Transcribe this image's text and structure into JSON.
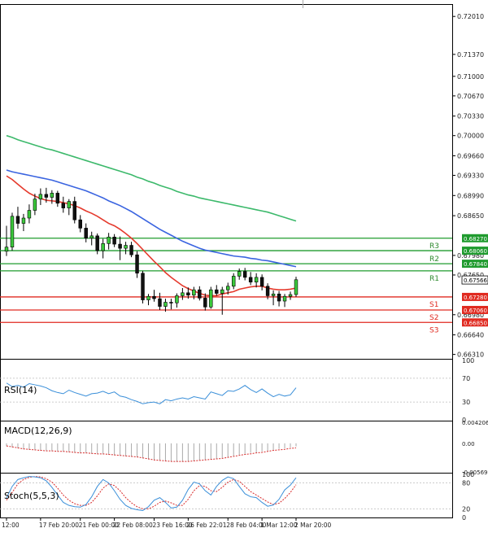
{
  "chart_data": {
    "type": "candlestick",
    "main": {
      "ylim": [
        0.6625,
        0.7215
      ],
      "price_ticks": [
        0.7201,
        0.7137,
        0.71,
        0.7067,
        0.7033,
        0.7,
        0.6966,
        0.6933,
        0.6899,
        0.6865,
        0.6798,
        0.6765,
        0.6698,
        0.6664,
        0.6631
      ],
      "price_tick_labels": [
        "0.72010",
        "0.71370",
        "0.71000",
        "0.70670",
        "0.70330",
        "0.70000",
        "0.69660",
        "0.69330",
        "0.68990",
        "0.68650",
        "0.67980",
        "0.67650",
        "0.66980",
        "0.66640",
        "0.66310"
      ],
      "candles": [
        {
          "o": 0.6805,
          "h": 0.6848,
          "l": 0.6797,
          "c": 0.6812
        },
        {
          "o": 0.6812,
          "h": 0.687,
          "l": 0.6806,
          "c": 0.6864
        },
        {
          "o": 0.6864,
          "h": 0.688,
          "l": 0.6843,
          "c": 0.6852
        },
        {
          "o": 0.6852,
          "h": 0.6868,
          "l": 0.6839,
          "c": 0.6861
        },
        {
          "o": 0.6861,
          "h": 0.6884,
          "l": 0.6852,
          "c": 0.6874
        },
        {
          "o": 0.6874,
          "h": 0.6902,
          "l": 0.6866,
          "c": 0.6893
        },
        {
          "o": 0.6893,
          "h": 0.6911,
          "l": 0.6883,
          "c": 0.6901
        },
        {
          "o": 0.6901,
          "h": 0.6912,
          "l": 0.6887,
          "c": 0.6896
        },
        {
          "o": 0.6896,
          "h": 0.6908,
          "l": 0.6885,
          "c": 0.6903
        },
        {
          "o": 0.6903,
          "h": 0.6907,
          "l": 0.688,
          "c": 0.6886
        },
        {
          "o": 0.6886,
          "h": 0.6897,
          "l": 0.687,
          "c": 0.6878
        },
        {
          "o": 0.6878,
          "h": 0.6893,
          "l": 0.6866,
          "c": 0.6889
        },
        {
          "o": 0.6889,
          "h": 0.6897,
          "l": 0.6852,
          "c": 0.6858
        },
        {
          "o": 0.6858,
          "h": 0.6866,
          "l": 0.6837,
          "c": 0.6844
        },
        {
          "o": 0.6844,
          "h": 0.6852,
          "l": 0.682,
          "c": 0.6827
        },
        {
          "o": 0.6827,
          "h": 0.6838,
          "l": 0.6815,
          "c": 0.6831
        },
        {
          "o": 0.6831,
          "h": 0.6835,
          "l": 0.68,
          "c": 0.6806
        },
        {
          "o": 0.6806,
          "h": 0.6826,
          "l": 0.6793,
          "c": 0.6818
        },
        {
          "o": 0.6818,
          "h": 0.6836,
          "l": 0.6808,
          "c": 0.6829
        },
        {
          "o": 0.6829,
          "h": 0.6834,
          "l": 0.6812,
          "c": 0.6817
        },
        {
          "o": 0.6817,
          "h": 0.683,
          "l": 0.679,
          "c": 0.681
        },
        {
          "o": 0.681,
          "h": 0.6821,
          "l": 0.68,
          "c": 0.6815
        },
        {
          "o": 0.6815,
          "h": 0.6821,
          "l": 0.6795,
          "c": 0.6799
        },
        {
          "o": 0.6799,
          "h": 0.6805,
          "l": 0.676,
          "c": 0.6768
        },
        {
          "o": 0.6768,
          "h": 0.6772,
          "l": 0.6717,
          "c": 0.6723
        },
        {
          "o": 0.6723,
          "h": 0.6733,
          "l": 0.6714,
          "c": 0.6729
        },
        {
          "o": 0.6729,
          "h": 0.674,
          "l": 0.672,
          "c": 0.6725
        },
        {
          "o": 0.6725,
          "h": 0.6735,
          "l": 0.6706,
          "c": 0.6712
        },
        {
          "o": 0.6712,
          "h": 0.6725,
          "l": 0.6703,
          "c": 0.6719
        },
        {
          "o": 0.6719,
          "h": 0.6725,
          "l": 0.6707,
          "c": 0.6718
        },
        {
          "o": 0.6718,
          "h": 0.6734,
          "l": 0.671,
          "c": 0.673
        },
        {
          "o": 0.673,
          "h": 0.6743,
          "l": 0.6723,
          "c": 0.6735
        },
        {
          "o": 0.6735,
          "h": 0.6744,
          "l": 0.6725,
          "c": 0.6731
        },
        {
          "o": 0.6731,
          "h": 0.6745,
          "l": 0.6724,
          "c": 0.674
        },
        {
          "o": 0.674,
          "h": 0.6746,
          "l": 0.6722,
          "c": 0.6726
        },
        {
          "o": 0.6726,
          "h": 0.6734,
          "l": 0.6705,
          "c": 0.6711
        },
        {
          "o": 0.6711,
          "h": 0.6745,
          "l": 0.6708,
          "c": 0.674
        },
        {
          "o": 0.674,
          "h": 0.6748,
          "l": 0.673,
          "c": 0.6734
        },
        {
          "o": 0.6734,
          "h": 0.6745,
          "l": 0.6698,
          "c": 0.674
        },
        {
          "o": 0.674,
          "h": 0.6752,
          "l": 0.6732,
          "c": 0.6746
        },
        {
          "o": 0.6746,
          "h": 0.6768,
          "l": 0.6741,
          "c": 0.6763
        },
        {
          "o": 0.6763,
          "h": 0.6776,
          "l": 0.6757,
          "c": 0.6771
        },
        {
          "o": 0.6771,
          "h": 0.6777,
          "l": 0.6756,
          "c": 0.6761
        },
        {
          "o": 0.6761,
          "h": 0.677,
          "l": 0.6748,
          "c": 0.6753
        },
        {
          "o": 0.6753,
          "h": 0.6768,
          "l": 0.6744,
          "c": 0.6761
        },
        {
          "o": 0.6761,
          "h": 0.6766,
          "l": 0.6739,
          "c": 0.6746
        },
        {
          "o": 0.6746,
          "h": 0.6751,
          "l": 0.6724,
          "c": 0.673
        },
        {
          "o": 0.673,
          "h": 0.6739,
          "l": 0.6714,
          "c": 0.6733
        },
        {
          "o": 0.6733,
          "h": 0.6738,
          "l": 0.6712,
          "c": 0.6721
        },
        {
          "o": 0.6721,
          "h": 0.6733,
          "l": 0.6711,
          "c": 0.6729
        },
        {
          "o": 0.6729,
          "h": 0.6737,
          "l": 0.6723,
          "c": 0.6732
        },
        {
          "o": 0.6732,
          "h": 0.6762,
          "l": 0.6728,
          "c": 0.6757
        }
      ],
      "ma_series": [
        {
          "name": "ma-slow",
          "color": "#3cb96b",
          "values": [
            0.7,
            0.6997,
            0.6993,
            0.699,
            0.6987,
            0.6984,
            0.6981,
            0.6978,
            0.6976,
            0.6973,
            0.697,
            0.6967,
            0.6964,
            0.6961,
            0.6958,
            0.6955,
            0.6952,
            0.6949,
            0.6946,
            0.6943,
            0.694,
            0.6937,
            0.6934,
            0.693,
            0.6927,
            0.6923,
            0.692,
            0.6916,
            0.6913,
            0.691,
            0.6906,
            0.6903,
            0.69,
            0.6898,
            0.6895,
            0.6893,
            0.6891,
            0.6889,
            0.6887,
            0.6885,
            0.6883,
            0.6881,
            0.6879,
            0.6877,
            0.6875,
            0.6873,
            0.6871,
            0.6868,
            0.6865,
            0.6862,
            0.6859,
            0.6856
          ]
        },
        {
          "name": "ma-mid",
          "color": "#3a64e0",
          "values": [
            0.6942,
            0.6939,
            0.6937,
            0.6935,
            0.6933,
            0.6931,
            0.6929,
            0.6927,
            0.6925,
            0.6922,
            0.6919,
            0.6916,
            0.6913,
            0.691,
            0.6907,
            0.6903,
            0.6899,
            0.6895,
            0.689,
            0.6886,
            0.6882,
            0.6877,
            0.6872,
            0.6866,
            0.686,
            0.6854,
            0.6848,
            0.6842,
            0.6837,
            0.6832,
            0.6827,
            0.6822,
            0.6818,
            0.6814,
            0.681,
            0.6807,
            0.6805,
            0.6803,
            0.6801,
            0.6799,
            0.6797,
            0.6796,
            0.6795,
            0.6793,
            0.6792,
            0.679,
            0.6789,
            0.6787,
            0.6785,
            0.6783,
            0.6781,
            0.6779
          ]
        },
        {
          "name": "ma-fast",
          "color": "#e53a2d",
          "values": [
            0.6932,
            0.6926,
            0.6918,
            0.691,
            0.6903,
            0.6898,
            0.6894,
            0.6891,
            0.689,
            0.6889,
            0.6887,
            0.6885,
            0.6882,
            0.6878,
            0.6873,
            0.6869,
            0.6864,
            0.6858,
            0.6852,
            0.6848,
            0.6842,
            0.6835,
            0.6827,
            0.6818,
            0.6808,
            0.6798,
            0.6788,
            0.6779,
            0.6769,
            0.6761,
            0.6754,
            0.6747,
            0.6742,
            0.6738,
            0.6734,
            0.6731,
            0.673,
            0.673,
            0.6733,
            0.6735,
            0.6737,
            0.6741,
            0.6743,
            0.6745,
            0.6746,
            0.6746,
            0.6743,
            0.6741,
            0.674,
            0.674,
            0.6741,
            0.6743
          ]
        }
      ],
      "levels": [
        {
          "name": "R3",
          "value": 0.6806,
          "label": "0.68060",
          "color": "#1f9b2e",
          "label_color": "#2e8a2e"
        },
        {
          "name": "R2",
          "value": 0.6784,
          "label": "0.67840",
          "color": "#1f9b2e",
          "label_color": "#2e8a2e"
        },
        {
          "name": "R1",
          "value": "",
          "label": "",
          "color": "#1f9b2e",
          "label_color": "#2e8a2e"
        },
        {
          "name": "S1",
          "value": 0.6728,
          "label": "0.67280",
          "color": "#e02a20",
          "label_color": "#e02a20"
        },
        {
          "name": "S2",
          "value": 0.6706,
          "label": "0.67060",
          "color": "#e02a20",
          "label_color": "#e02a20"
        },
        {
          "name": "S3",
          "value": 0.6685,
          "label": "0.66850",
          "color": "#e02a20",
          "label_color": "#e02a20"
        }
      ],
      "extra_level": {
        "value": 0.6827,
        "label": "0.68270",
        "color": "#1f9b2e"
      },
      "current_price": {
        "value": 0.67566,
        "label": "0.67566"
      },
      "extra_tick_label": "0.66980"
    },
    "rsi": {
      "label": "RSI(14)",
      "ticks": [
        "100",
        "70",
        "30",
        "0"
      ],
      "tick_values": [
        100,
        70,
        30,
        0
      ],
      "levels": [
        70,
        30
      ],
      "color": "#3a8fd9",
      "values": [
        62,
        56,
        58,
        55,
        61,
        59,
        57,
        54,
        49,
        46,
        44,
        50,
        46,
        43,
        40,
        44,
        45,
        48,
        44,
        47,
        40,
        38,
        34,
        31,
        27,
        29,
        30,
        27,
        34,
        32,
        35,
        37,
        35,
        39,
        37,
        35,
        47,
        44,
        41,
        49,
        48,
        52,
        58,
        51,
        46,
        52,
        45,
        39,
        43,
        40,
        42,
        54
      ]
    },
    "macd": {
      "label": "MACD(12,26,9)",
      "ticks": [
        "0.004206",
        "0.00",
        "-0.005698"
      ],
      "tick_values": [
        0.004206,
        0,
        -0.005698
      ],
      "signal_color": "#d82b2b",
      "hist_color": "#aaaaaa",
      "hist": [
        -0.0006,
        -0.0008,
        -0.001,
        -0.0012,
        -0.0013,
        -0.0014,
        -0.0015,
        -0.0015,
        -0.0016,
        -0.0016,
        -0.0017,
        -0.0018,
        -0.0019,
        -0.002,
        -0.002,
        -0.0021,
        -0.0021,
        -0.0022,
        -0.0023,
        -0.0024,
        -0.0025,
        -0.0026,
        -0.0027,
        -0.0028,
        -0.003,
        -0.0032,
        -0.0034,
        -0.0035,
        -0.0036,
        -0.0036,
        -0.0037,
        -0.0037,
        -0.0036,
        -0.0035,
        -0.0034,
        -0.0033,
        -0.0032,
        -0.0031,
        -0.0029,
        -0.0027,
        -0.0025,
        -0.0023,
        -0.0021,
        -0.0019,
        -0.0018,
        -0.0016,
        -0.0015,
        -0.0013,
        -0.0011,
        -0.001,
        -0.0008,
        -0.0006
      ],
      "signal": [
        -0.0005,
        -0.0007,
        -0.0009,
        -0.0011,
        -0.0012,
        -0.0013,
        -0.0014,
        -0.0015,
        -0.0015,
        -0.0016,
        -0.0016,
        -0.0017,
        -0.0018,
        -0.0019,
        -0.0019,
        -0.002,
        -0.0021,
        -0.0021,
        -0.0022,
        -0.0023,
        -0.0024,
        -0.0025,
        -0.0026,
        -0.0027,
        -0.0029,
        -0.0031,
        -0.0033,
        -0.0034,
        -0.0035,
        -0.0036,
        -0.0036,
        -0.0036,
        -0.0036,
        -0.0035,
        -0.0034,
        -0.0033,
        -0.0032,
        -0.0031,
        -0.003,
        -0.0028,
        -0.0026,
        -0.0024,
        -0.0022,
        -0.0021,
        -0.0019,
        -0.0018,
        -0.0016,
        -0.0014,
        -0.0013,
        -0.0012,
        -0.001,
        -0.0009
      ]
    },
    "stoch": {
      "label": "Stoch(5,5,3)",
      "ticks": [
        "100",
        "80",
        "20",
        "0"
      ],
      "tick_values": [
        100,
        80,
        20,
        0
      ],
      "levels": [
        80,
        20
      ],
      "main_color": "#3a8fd9",
      "signal_color": "#d82b2b",
      "main": [
        45,
        72,
        88,
        92,
        95,
        94,
        92,
        85,
        70,
        52,
        35,
        28,
        25,
        24,
        30,
        48,
        72,
        88,
        80,
        62,
        42,
        28,
        21,
        18,
        16,
        25,
        40,
        46,
        35,
        22,
        24,
        40,
        65,
        82,
        78,
        62,
        52,
        72,
        86,
        94,
        90,
        72,
        55,
        48,
        46,
        35,
        26,
        29,
        42,
        64,
        75,
        92
      ],
      "signal": [
        40,
        58,
        78,
        88,
        93,
        95,
        94,
        90,
        82,
        68,
        52,
        40,
        32,
        28,
        28,
        35,
        50,
        68,
        78,
        74,
        62,
        46,
        34,
        25,
        20,
        20,
        26,
        35,
        38,
        34,
        28,
        28,
        42,
        62,
        74,
        72,
        62,
        60,
        70,
        82,
        88,
        84,
        72,
        60,
        52,
        44,
        36,
        30,
        33,
        44,
        58,
        76
      ]
    },
    "x_axis": {
      "labels": [
        "12:00",
        "17 Feb 20:00",
        "21 Feb 00:00",
        "22 Feb 08:00",
        "23 Feb 16:00",
        "26 Feb 22:01",
        "28 Feb 04:00",
        "1 Mar 12:00",
        "2 Mar 20:00"
      ],
      "label_index": [
        0,
        6,
        13,
        19,
        26,
        32,
        39,
        45,
        51
      ]
    }
  }
}
